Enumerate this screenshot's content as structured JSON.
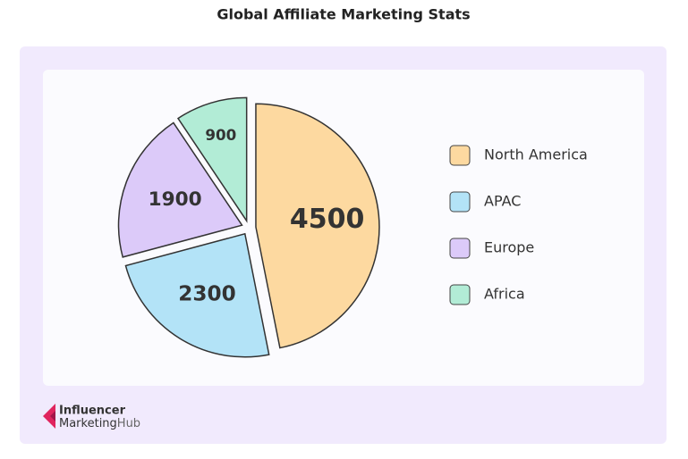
{
  "chart_data": {
    "type": "pie",
    "title": "Global Affiliate Marketing Stats",
    "categories": [
      "North America",
      "APAC",
      "Europe",
      "Africa"
    ],
    "values": [
      4500,
      2300,
      1900,
      900
    ],
    "colors": [
      "#fdd9a0",
      "#b3e3f7",
      "#dccaf9",
      "#b2ecd6"
    ]
  },
  "logo": {
    "line1": "Influencer",
    "line2a": "Marketing",
    "line2b": "Hub"
  }
}
